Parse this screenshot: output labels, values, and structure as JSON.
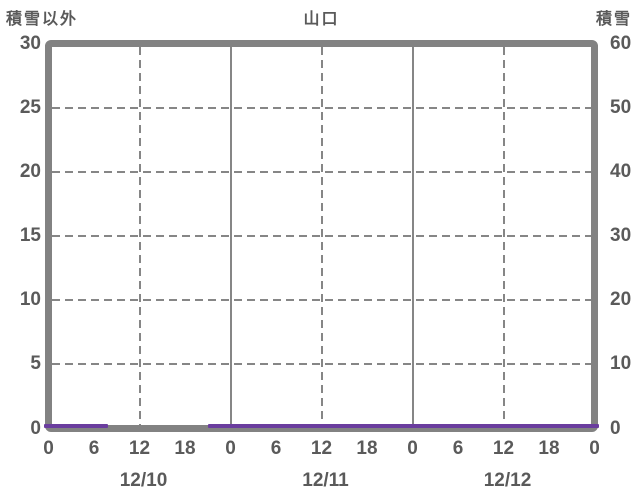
{
  "header": {
    "left_axis_title": "積雪以外",
    "chart_title": "山口",
    "right_axis_title": "積雪"
  },
  "colors": {
    "frame": "#828282",
    "grid": "#868686",
    "text": "#5a5a5a",
    "snow_line": "#6a3d9e",
    "background": "#ffffff"
  },
  "chart_data": {
    "type": "line",
    "title": "山口",
    "left_axis": {
      "label": "積雪以外",
      "min": 0,
      "max": 30,
      "ticks": [
        0,
        5,
        10,
        15,
        20,
        25,
        30
      ]
    },
    "right_axis": {
      "label": "積雪",
      "min": 0,
      "max": 60,
      "ticks": [
        0,
        10,
        20,
        30,
        40,
        50,
        60
      ]
    },
    "x_axis": {
      "total_hours": 72,
      "tick_interval_hours": 6,
      "hour_labels": [
        "0",
        "6",
        "12",
        "18",
        "0",
        "6",
        "12",
        "18",
        "0",
        "6",
        "12",
        "18",
        "0"
      ],
      "date_labels": [
        "12/10",
        "12/11",
        "12/12"
      ],
      "solid_gridline_hours": [
        24,
        48
      ],
      "dashed_gridline_hours": [
        12,
        36,
        60
      ]
    },
    "horizontal_gridline_values_left": [
      5,
      10,
      15,
      20,
      25
    ],
    "grid": true,
    "legend": "none",
    "series": [
      {
        "name": "積雪",
        "axis": "right",
        "color": "#6a3d9e",
        "value": 0,
        "segments_hours": [
          [
            0,
            7.8
          ],
          [
            21,
            72
          ]
        ]
      }
    ]
  }
}
